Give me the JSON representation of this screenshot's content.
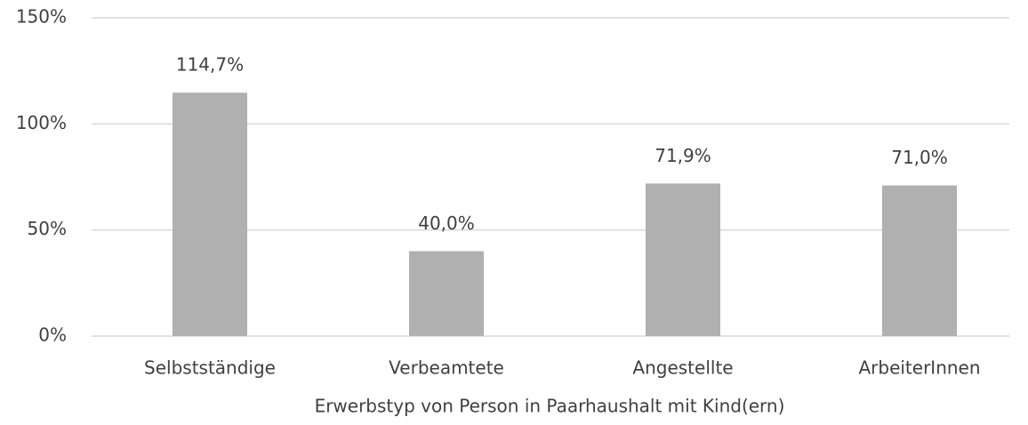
{
  "chart_data": {
    "type": "bar",
    "categories": [
      "Selbstständige",
      "Verbeamtete",
      "Angestellte",
      "ArbeiterInnen"
    ],
    "values": [
      114.7,
      40.0,
      71.9,
      71.0
    ],
    "value_labels": [
      "114,7%",
      "40,0%",
      "71,9%",
      "71,0%"
    ],
    "color": "#b0b0b0",
    "x_label": "Erwerbstyp von Person in Paarhaushalt mit Kind(ern)",
    "ylim": [
      0,
      150
    ],
    "yticks": [
      {
        "value": 0,
        "label": "0%"
      },
      {
        "value": 50,
        "label": "50%"
      },
      {
        "value": 100,
        "label": "100%"
      },
      {
        "value": 150,
        "label": "150%"
      }
    ],
    "grid": true
  }
}
